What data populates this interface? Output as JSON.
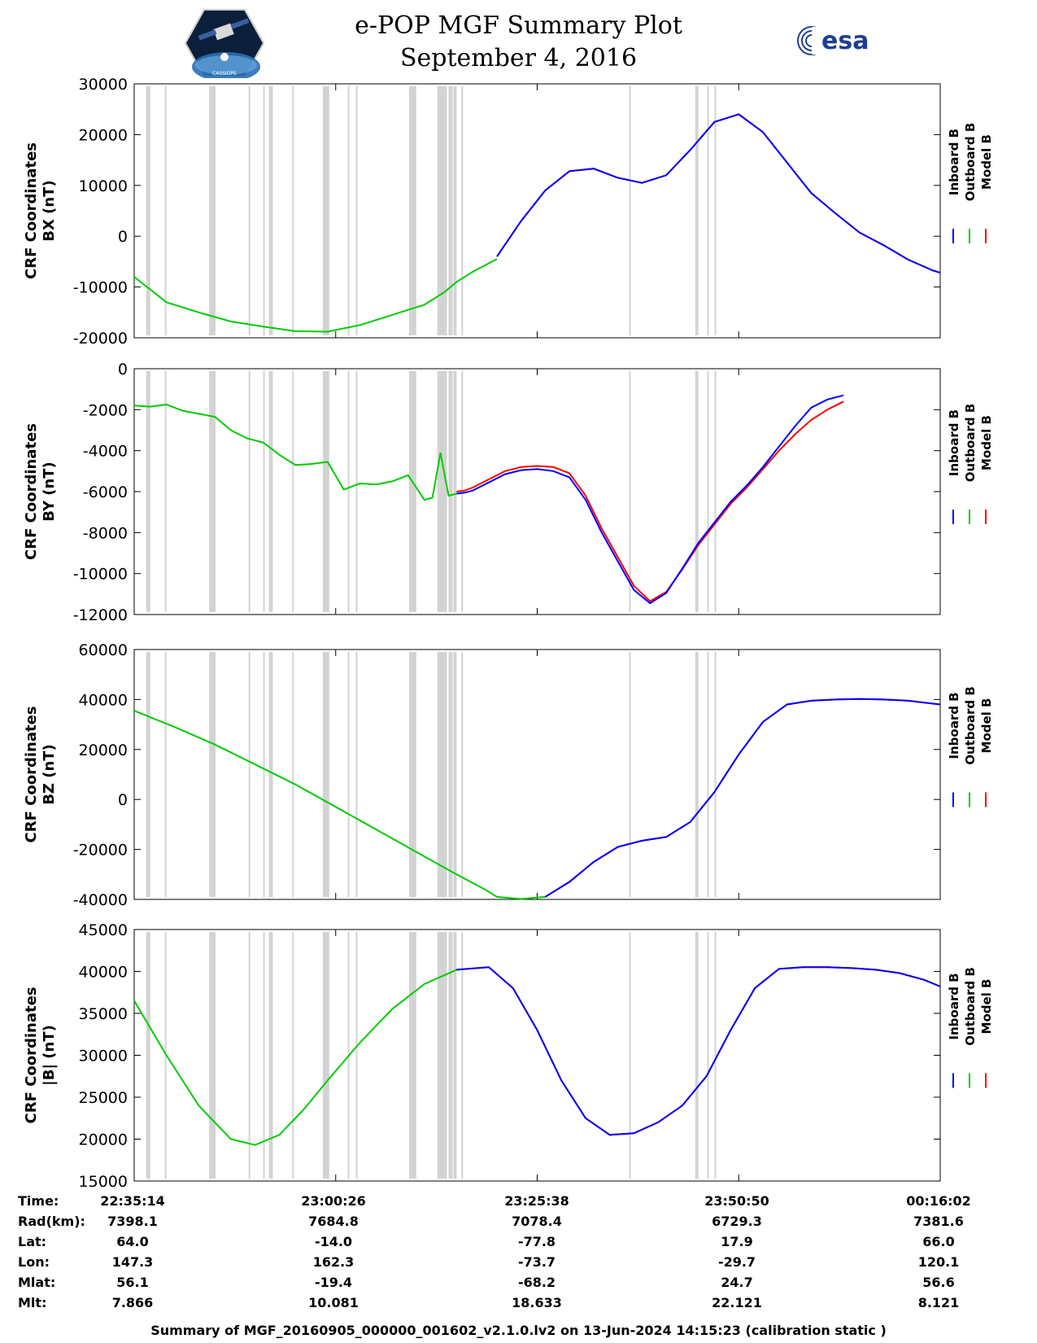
{
  "title": {
    "line1": "e-POP MGF Summary Plot",
    "line2": "September 4, 2016"
  },
  "logos": {
    "left": "CASSIOPE",
    "right": "esa"
  },
  "footer": "Summary of MGF_20160905_000000_001602_v2.1.0.lv2 on 13-Jun-2024 14:15:23 (calibration static )",
  "colors": {
    "inboard": "#0000ff",
    "outboard": "#00cc00",
    "model": "#ff0000",
    "gap": "#d3d3d3"
  },
  "legend": [
    "Inboard B",
    "Outboard B",
    "Model B"
  ],
  "chart_data": [
    {
      "type": "line",
      "ylabel": [
        "CRF Coordinates",
        "BX (nT)"
      ],
      "ylim": [
        -20000,
        30000
      ],
      "yticks": [
        -20000,
        -10000,
        0,
        10000,
        20000,
        30000
      ],
      "x": [
        0,
        4,
        8,
        12,
        16,
        20,
        24,
        28,
        32,
        36,
        38.5,
        40,
        42,
        45,
        48,
        51,
        54,
        57,
        60,
        63,
        66,
        69,
        72,
        75,
        78,
        81,
        84,
        87,
        90,
        93,
        96,
        99,
        100
      ],
      "series": [
        {
          "name": "Outboard B",
          "role": "outboard",
          "values": [
            -8000,
            -13000,
            -15000,
            -16800,
            -17800,
            -18700,
            -18800,
            -17500,
            -15500,
            -13500,
            -11000,
            -9000,
            -7000,
            -4500,
            null,
            null,
            null,
            null,
            null,
            null,
            null,
            null,
            null,
            null,
            null,
            null,
            null,
            null,
            null,
            null,
            null,
            null,
            null
          ]
        },
        {
          "name": "Model B",
          "role": "model",
          "values": [
            null,
            null,
            null,
            null,
            null,
            null,
            null,
            null,
            null,
            null,
            null,
            null,
            null,
            -4000,
            3000,
            9000,
            12800,
            13300,
            11500,
            10500,
            12000,
            17000,
            22500,
            24000,
            20500,
            14500,
            8500,
            4500,
            700,
            -1800,
            -4600,
            -6700,
            -7200
          ]
        },
        {
          "name": "Inboard B",
          "role": "inboard",
          "values": [
            null,
            null,
            null,
            null,
            null,
            null,
            null,
            null,
            null,
            null,
            null,
            null,
            null,
            -4000,
            3000,
            9000,
            12800,
            13300,
            11500,
            10500,
            12000,
            17000,
            22500,
            24000,
            20500,
            14500,
            8500,
            4500,
            700,
            -1800,
            -4600,
            -6700,
            -7200
          ]
        }
      ]
    },
    {
      "type": "line",
      "ylabel": [
        "CRF Coordinates",
        "BY (nT)"
      ],
      "ylim": [
        -12000,
        0
      ],
      "yticks": [
        -12000,
        -10000,
        -8000,
        -6000,
        -4000,
        -2000,
        0
      ],
      "x": [
        0,
        2,
        4,
        6,
        8,
        10,
        12,
        14,
        16,
        18,
        20,
        22,
        24,
        26,
        28,
        30,
        32,
        34,
        36,
        37,
        38,
        39,
        40,
        41,
        42,
        44,
        46,
        48,
        50,
        52,
        54,
        56,
        58,
        60,
        62,
        64,
        66,
        68,
        70,
        72,
        74,
        76,
        78,
        80,
        82,
        84,
        86,
        88,
        90,
        92,
        94,
        96,
        98,
        100
      ],
      "series": [
        {
          "name": "Outboard B",
          "role": "outboard",
          "values": [
            -1800,
            -1850,
            -1750,
            -2050,
            -2200,
            -2350,
            -3000,
            -3400,
            -3600,
            -4200,
            -4700,
            -4650,
            -4550,
            -5900,
            -5600,
            -5650,
            -5500,
            -5200,
            -6400,
            -6300,
            -4100,
            -6200,
            -6100,
            null,
            null,
            null,
            null,
            null,
            null,
            null,
            null,
            null,
            null,
            null,
            null,
            null,
            null,
            null,
            null,
            null,
            null,
            null,
            null,
            null,
            null,
            null,
            null,
            null,
            null,
            null,
            null,
            null,
            null,
            null
          ]
        },
        {
          "name": "Model B",
          "role": "model",
          "values": [
            null,
            null,
            null,
            null,
            null,
            null,
            null,
            null,
            null,
            null,
            null,
            null,
            null,
            null,
            null,
            null,
            null,
            null,
            null,
            null,
            null,
            null,
            -6000,
            -5950,
            -5800,
            -5400,
            -5000,
            -4800,
            -4750,
            -4800,
            -5100,
            -6200,
            -7800,
            -9200,
            -10600,
            -11350,
            -10900,
            -9800,
            -8600,
            -7600,
            -6600,
            -5800,
            -4900,
            -4000,
            -3200,
            -2500,
            -2000,
            -1600,
            null,
            null,
            null,
            null,
            null,
            null
          ]
        },
        {
          "name": "Inboard B",
          "role": "inboard",
          "values": [
            null,
            null,
            null,
            null,
            null,
            null,
            null,
            null,
            null,
            null,
            null,
            null,
            null,
            null,
            null,
            null,
            null,
            null,
            null,
            null,
            null,
            null,
            -6100,
            -6050,
            -5950,
            -5550,
            -5150,
            -4950,
            -4900,
            -5000,
            -5300,
            -6400,
            -8000,
            -9400,
            -10800,
            -11450,
            -10950,
            -9750,
            -8500,
            -7500,
            -6500,
            -5700,
            -4800,
            -3800,
            -2800,
            -1900,
            -1500,
            -1300,
            null,
            null,
            null,
            null,
            null,
            null
          ]
        }
      ]
    },
    {
      "type": "line",
      "ylabel": [
        "CRF Coordinates",
        "BZ (nT)"
      ],
      "ylim": [
        -40000,
        60000
      ],
      "yticks": [
        -40000,
        -20000,
        0,
        20000,
        40000,
        60000
      ],
      "x": [
        0,
        5,
        10,
        15,
        20,
        25,
        30,
        35,
        40,
        43.5,
        45,
        48,
        51,
        54,
        57,
        60,
        63,
        66,
        69,
        72,
        75,
        78,
        81,
        84,
        87,
        90,
        93,
        96,
        100
      ],
      "series": [
        {
          "name": "Outboard B",
          "role": "outboard",
          "values": [
            35500,
            29000,
            22000,
            14000,
            6000,
            -3000,
            -12000,
            -21000,
            -30000,
            -36000,
            -39000,
            -39800,
            -39000,
            null,
            null,
            null,
            null,
            null,
            null,
            null,
            null,
            null,
            null,
            null,
            null,
            null,
            null,
            null,
            null
          ]
        },
        {
          "name": "Model B",
          "role": "model",
          "values": [
            null,
            null,
            null,
            null,
            null,
            null,
            null,
            null,
            null,
            null,
            null,
            null,
            -39000,
            -33000,
            -25000,
            -19000,
            -16500,
            -15000,
            -9000,
            3000,
            18000,
            31000,
            38000,
            39500,
            40000,
            40200,
            40000,
            39500,
            38000
          ]
        },
        {
          "name": "Inboard B",
          "role": "inboard",
          "values": [
            null,
            null,
            null,
            null,
            null,
            null,
            null,
            null,
            null,
            null,
            null,
            null,
            -39000,
            -33000,
            -25000,
            -19000,
            -16500,
            -15000,
            -9000,
            3000,
            18000,
            31000,
            38000,
            39500,
            40000,
            40200,
            40000,
            39500,
            38000
          ]
        }
      ]
    },
    {
      "type": "line",
      "ylabel": [
        "CRF Coordinates",
        "|B| (nT)"
      ],
      "ylim": [
        15000,
        45000
      ],
      "yticks": [
        15000,
        20000,
        25000,
        30000,
        35000,
        40000,
        45000
      ],
      "x": [
        0,
        4,
        8,
        12,
        15,
        18,
        21,
        24,
        28,
        32,
        36,
        40,
        44,
        47,
        50,
        53,
        56,
        59,
        62,
        65,
        68,
        71,
        74,
        77,
        80,
        83,
        86,
        89,
        92,
        95,
        98,
        100
      ],
      "series": [
        {
          "name": "Outboard B",
          "role": "outboard",
          "values": [
            36500,
            30000,
            24000,
            20000,
            19300,
            20500,
            23500,
            27000,
            31500,
            35500,
            38500,
            40200,
            null,
            null,
            null,
            null,
            null,
            null,
            null,
            null,
            null,
            null,
            null,
            null,
            null,
            null,
            null,
            null,
            null,
            null,
            null,
            null
          ]
        },
        {
          "name": "Model B",
          "role": "model",
          "values": [
            null,
            null,
            null,
            null,
            null,
            null,
            null,
            null,
            null,
            null,
            null,
            40200,
            40500,
            38000,
            33000,
            27000,
            22500,
            20500,
            20700,
            22000,
            24000,
            27500,
            33000,
            38000,
            40300,
            40500,
            40500,
            40400,
            40200,
            39800,
            39000,
            38200
          ]
        },
        {
          "name": "Inboard B",
          "role": "inboard",
          "values": [
            null,
            null,
            null,
            null,
            null,
            null,
            null,
            null,
            null,
            null,
            null,
            40200,
            40500,
            38000,
            33000,
            27000,
            22500,
            20500,
            20700,
            22000,
            24000,
            27500,
            33000,
            38000,
            40300,
            40500,
            40500,
            40400,
            40200,
            39800,
            39000,
            38200
          ]
        }
      ]
    }
  ],
  "gaps": [
    [
      1.5,
      2.0
    ],
    [
      3.8,
      4.0
    ],
    [
      9.3,
      10.1
    ],
    [
      14.2,
      14.4
    ],
    [
      16.0,
      16.2
    ],
    [
      16.7,
      17.2
    ],
    [
      19.6,
      19.8
    ],
    [
      23.4,
      24.2
    ],
    [
      26.5,
      26.7
    ],
    [
      27.5,
      27.7
    ],
    [
      34.1,
      35.0
    ],
    [
      37.6,
      38.8
    ],
    [
      39.0,
      39.5
    ],
    [
      39.6,
      40.0
    ],
    [
      40.6,
      40.8
    ],
    [
      72.0,
      72.2
    ],
    [
      69.6,
      70.0
    ],
    [
      71.1,
      71.3
    ],
    [
      61.4,
      61.6
    ]
  ],
  "x_ticks": [
    0,
    25,
    50,
    75,
    100
  ],
  "ephemeris": {
    "labels": [
      "Time:",
      "Rad(km):",
      "Lat:",
      "Lon:",
      "Mlat:",
      "Mlt:"
    ],
    "columns": [
      [
        "22:35:14",
        "7398.1",
        "64.0",
        "147.3",
        "56.1",
        "7.866"
      ],
      [
        "23:00:26",
        "7684.8",
        "-14.0",
        "162.3",
        "-19.4",
        "10.081"
      ],
      [
        "23:25:38",
        "7078.4",
        "-77.8",
        "-73.7",
        "-68.2",
        "18.633"
      ],
      [
        "23:50:50",
        "6729.3",
        "17.9",
        "-29.7",
        "24.7",
        "22.121"
      ],
      [
        "00:16:02",
        "7381.6",
        "66.0",
        "120.1",
        "56.6",
        "8.121"
      ]
    ]
  }
}
